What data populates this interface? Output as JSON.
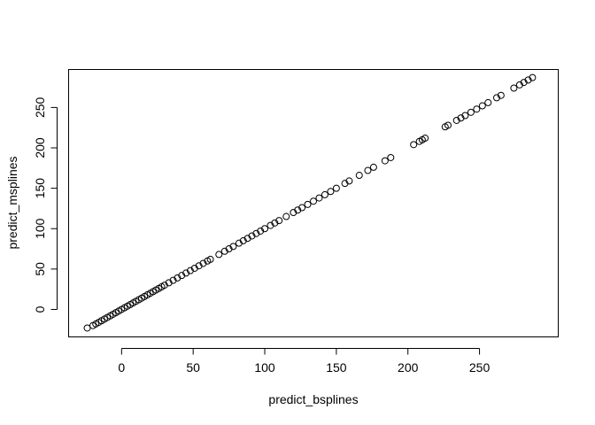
{
  "chart_data": {
    "type": "scatter",
    "title": "",
    "xlabel": "predict_bsplines",
    "ylabel": "predict_msplines",
    "xlim": [
      -37,
      305
    ],
    "ylim": [
      -34,
      297
    ],
    "xticks": [
      0,
      50,
      100,
      150,
      200,
      250
    ],
    "yticks": [
      0,
      50,
      100,
      150,
      200,
      250
    ],
    "grid": false,
    "series": [
      {
        "marker": "open-circle",
        "color": "#000000",
        "x": [
          -24,
          -20,
          -18,
          -16,
          -14,
          -12,
          -10,
          -8,
          -6,
          -4,
          -2,
          0,
          2,
          4,
          6,
          8,
          10,
          12,
          14,
          16,
          18,
          20,
          22,
          24,
          26,
          28,
          30,
          33,
          36,
          39,
          42,
          45,
          48,
          51,
          54,
          57,
          60,
          62,
          68,
          72,
          75,
          78,
          82,
          85,
          88,
          91,
          94,
          97,
          100,
          104,
          107,
          110,
          115,
          120,
          123,
          126,
          130,
          134,
          138,
          142,
          146,
          150,
          156,
          159,
          166,
          172,
          176,
          184,
          188,
          204,
          208,
          210,
          212,
          226,
          228,
          234,
          237,
          240,
          244,
          248,
          252,
          256,
          262,
          265,
          274,
          278,
          281,
          284,
          287
        ],
        "y": [
          -23,
          -20,
          -18,
          -16,
          -14,
          -12,
          -10,
          -8,
          -6,
          -4,
          -2,
          0,
          2,
          4,
          6,
          8,
          10,
          12,
          14,
          16,
          18,
          20,
          22,
          24,
          26,
          28,
          30,
          33,
          36,
          39,
          42,
          45,
          48,
          51,
          54,
          57,
          60,
          62,
          68,
          72,
          75,
          78,
          82,
          85,
          88,
          91,
          94,
          97,
          100,
          104,
          107,
          110,
          115,
          120,
          123,
          126,
          130,
          134,
          138,
          142,
          146,
          150,
          156,
          159,
          166,
          172,
          176,
          184,
          188,
          204,
          208,
          210,
          212,
          226,
          228,
          234,
          237,
          240,
          244,
          248,
          252,
          256,
          262,
          265,
          274,
          278,
          281,
          284,
          287
        ]
      }
    ]
  }
}
